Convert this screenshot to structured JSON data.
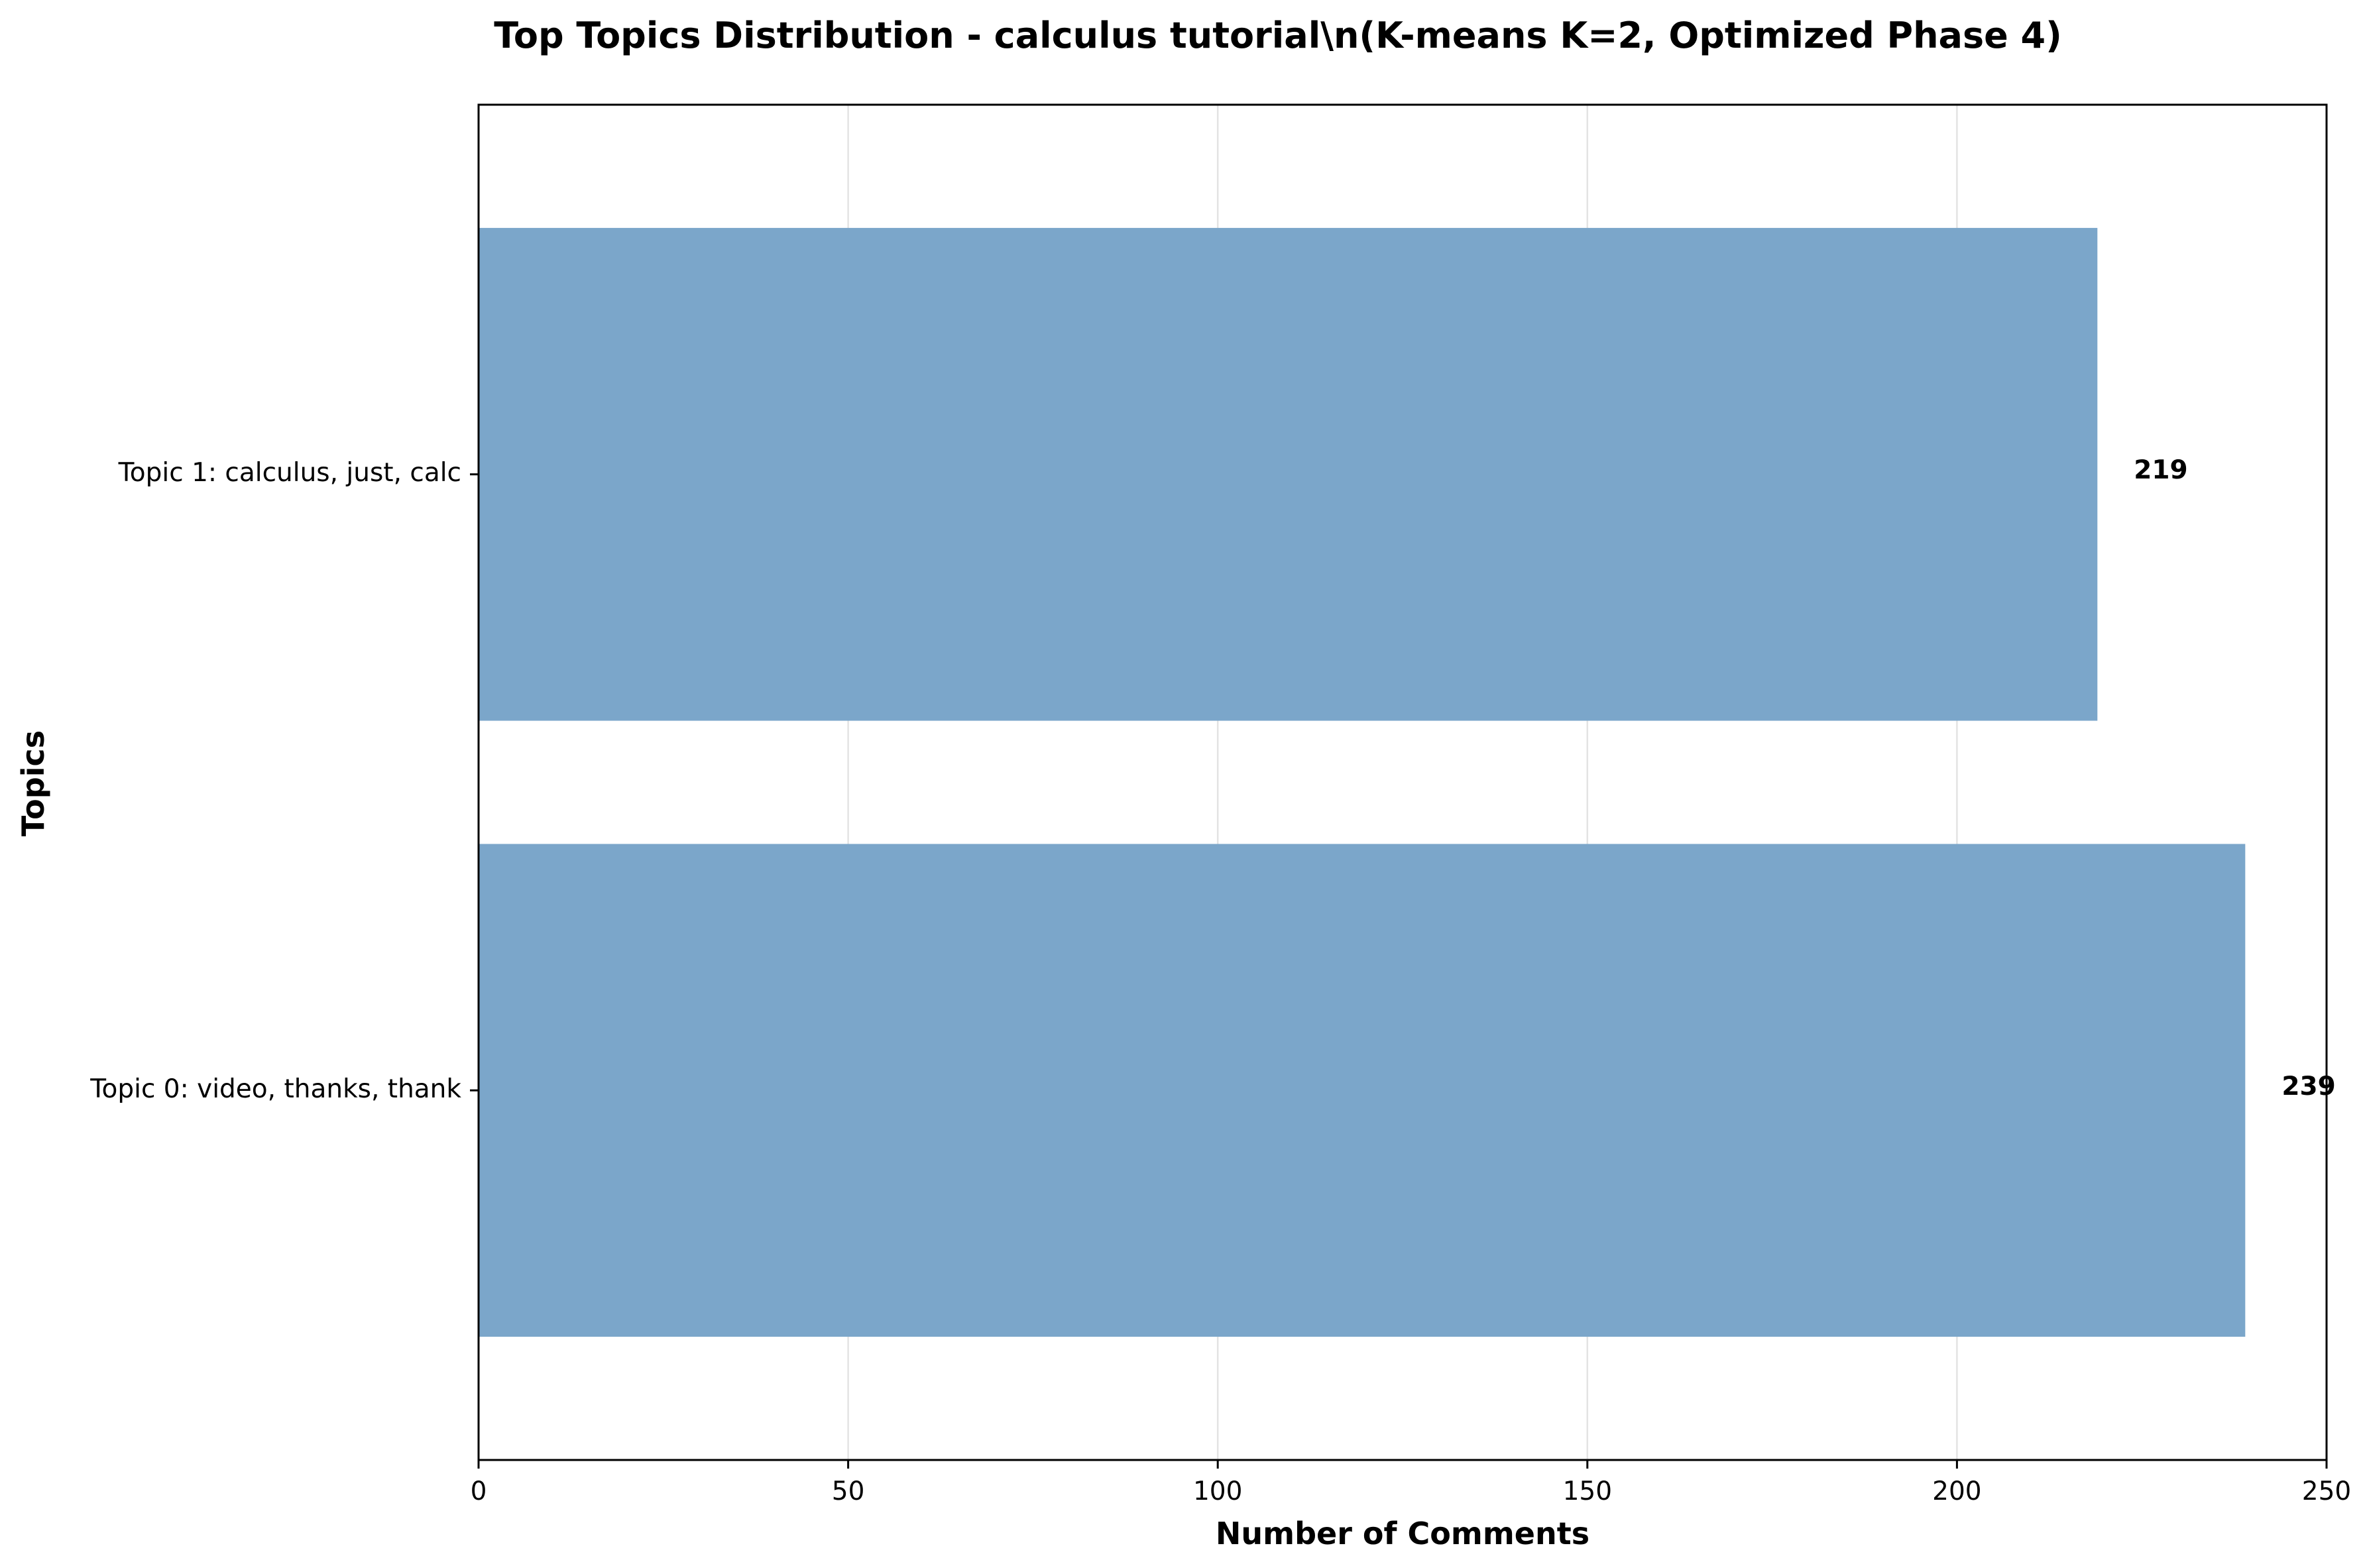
{
  "chart_data": {
    "type": "bar",
    "orientation": "horizontal",
    "title": "Top Topics Distribution - calculus tutorial\\n(K-means K=2, Optimized Phase 4)",
    "xlabel": "Number of Comments",
    "ylabel": "Topics",
    "categories": [
      "Topic 0: video, thanks, thank",
      "Topic 1: calculus, just, calc"
    ],
    "values": [
      239,
      219
    ],
    "data_labels": [
      "239",
      "219"
    ],
    "xlim": [
      0,
      250
    ],
    "xticks": [
      0,
      50,
      100,
      150,
      200,
      250
    ],
    "xtick_labels": [
      "0",
      "50",
      "100",
      "150",
      "200",
      "250"
    ],
    "grid": "x",
    "bar_color": "#7ba6ca"
  }
}
